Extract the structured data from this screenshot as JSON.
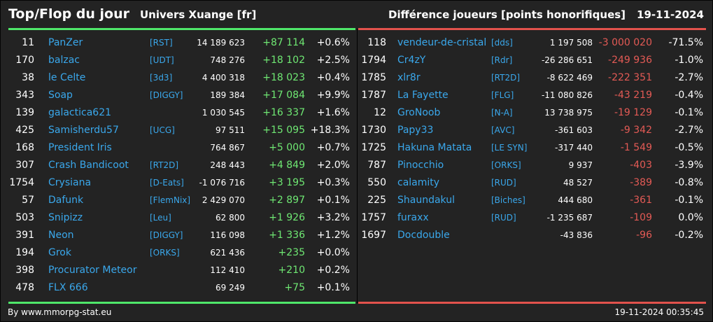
{
  "header": {
    "title": "Top/Flop du jour",
    "universe": "Univers Xuange [fr]",
    "subject": "Différence joueurs [points honorifiques]",
    "date": "19-11-2024"
  },
  "colors": {
    "top": "#4fe76a",
    "flop": "#e2524c",
    "name": "#3aa8ec",
    "background": "#232323"
  },
  "top": [
    {
      "rank": "11",
      "name": "PanZer",
      "alliance": "[RST]",
      "points": "14 189 623",
      "diff": "+87 114",
      "pct": "+0.6%"
    },
    {
      "rank": "170",
      "name": "balzac",
      "alliance": "[UDT]",
      "points": "748 276",
      "diff": "+18 102",
      "pct": "+2.5%"
    },
    {
      "rank": "38",
      "name": "le Celte",
      "alliance": "[3d3]",
      "points": "4 400 318",
      "diff": "+18 023",
      "pct": "+0.4%"
    },
    {
      "rank": "343",
      "name": "Soap",
      "alliance": "[DIGGY]",
      "points": "189 384",
      "diff": "+17 084",
      "pct": "+9.9%"
    },
    {
      "rank": "139",
      "name": "galactica621",
      "alliance": "",
      "points": "1 030 545",
      "diff": "+16 337",
      "pct": "+1.6%"
    },
    {
      "rank": "425",
      "name": "Samisherdu57",
      "alliance": "[UCG]",
      "points": "97 511",
      "diff": "+15 095",
      "pct": "+18.3%"
    },
    {
      "rank": "168",
      "name": "President Iris",
      "alliance": "",
      "points": "764 867",
      "diff": "+5 000",
      "pct": "+0.7%"
    },
    {
      "rank": "307",
      "name": "Crash Bandicoot",
      "alliance": "[RT2D]",
      "points": "248 443",
      "diff": "+4 849",
      "pct": "+2.0%"
    },
    {
      "rank": "1754",
      "name": "Crysiana",
      "alliance": "[D-Eats]",
      "points": "-1 076 716",
      "diff": "+3 195",
      "pct": "+0.3%"
    },
    {
      "rank": "57",
      "name": "Dafunk",
      "alliance": "[FlemNix]",
      "points": "2 429 070",
      "diff": "+2 897",
      "pct": "+0.1%"
    },
    {
      "rank": "503",
      "name": "Snipizz",
      "alliance": "[Leu]",
      "points": "62 800",
      "diff": "+1 926",
      "pct": "+3.2%"
    },
    {
      "rank": "391",
      "name": "Neon",
      "alliance": "[DIGGY]",
      "points": "116 098",
      "diff": "+1 336",
      "pct": "+1.2%"
    },
    {
      "rank": "194",
      "name": "Grok",
      "alliance": "[ORKS]",
      "points": "621 436",
      "diff": "+235",
      "pct": "+0.0%"
    },
    {
      "rank": "398",
      "name": "Procurator Meteor",
      "alliance": "",
      "points": "112 410",
      "diff": "+210",
      "pct": "+0.2%"
    },
    {
      "rank": "478",
      "name": "FLX 666",
      "alliance": "",
      "points": "69 249",
      "diff": "+75",
      "pct": "+0.1%"
    }
  ],
  "flop": [
    {
      "rank": "118",
      "name": "vendeur-de-cristal",
      "alliance": "[dds]",
      "points": "1 197 508",
      "diff": "-3 000 020",
      "pct": "-71.5%"
    },
    {
      "rank": "1794",
      "name": "Cr4zY",
      "alliance": "[Rdr]",
      "points": "-26 286 651",
      "diff": "-249 936",
      "pct": "-1.0%"
    },
    {
      "rank": "1785",
      "name": "xlr8r",
      "alliance": "[RT2D]",
      "points": "-8 622 469",
      "diff": "-222 351",
      "pct": "-2.7%"
    },
    {
      "rank": "1787",
      "name": "La Fayette",
      "alliance": "[FLG]",
      "points": "-11 080 826",
      "diff": "-43 219",
      "pct": "-0.4%"
    },
    {
      "rank": "12",
      "name": "GroNoob",
      "alliance": "[N-A]",
      "points": "13 738 975",
      "diff": "-19 129",
      "pct": "-0.1%"
    },
    {
      "rank": "1730",
      "name": "Papy33",
      "alliance": "[AVC]",
      "points": "-361 603",
      "diff": "-9 342",
      "pct": "-2.7%"
    },
    {
      "rank": "1725",
      "name": "Hakuna Matata",
      "alliance": "[LE SYN]",
      "points": "-317 440",
      "diff": "-1 549",
      "pct": "-0.5%"
    },
    {
      "rank": "787",
      "name": "Pinocchio",
      "alliance": "[ORKS]",
      "points": "9 937",
      "diff": "-403",
      "pct": "-3.9%"
    },
    {
      "rank": "550",
      "name": "calamity",
      "alliance": "[RUD]",
      "points": "48 527",
      "diff": "-389",
      "pct": "-0.8%"
    },
    {
      "rank": "225",
      "name": "Shaundakul",
      "alliance": "[Biches]",
      "points": "444 680",
      "diff": "-361",
      "pct": "-0.1%"
    },
    {
      "rank": "1757",
      "name": "furaxx",
      "alliance": "[RUD]",
      "points": "-1 235 687",
      "diff": "-109",
      "pct": "0.0%"
    },
    {
      "rank": "1697",
      "name": "Docdouble",
      "alliance": "",
      "points": "-43 836",
      "diff": "-96",
      "pct": "-0.2%"
    }
  ],
  "footer": {
    "source": "By www.mmorpg-stat.eu",
    "timestamp": "19-11-2024 00:35:45"
  }
}
